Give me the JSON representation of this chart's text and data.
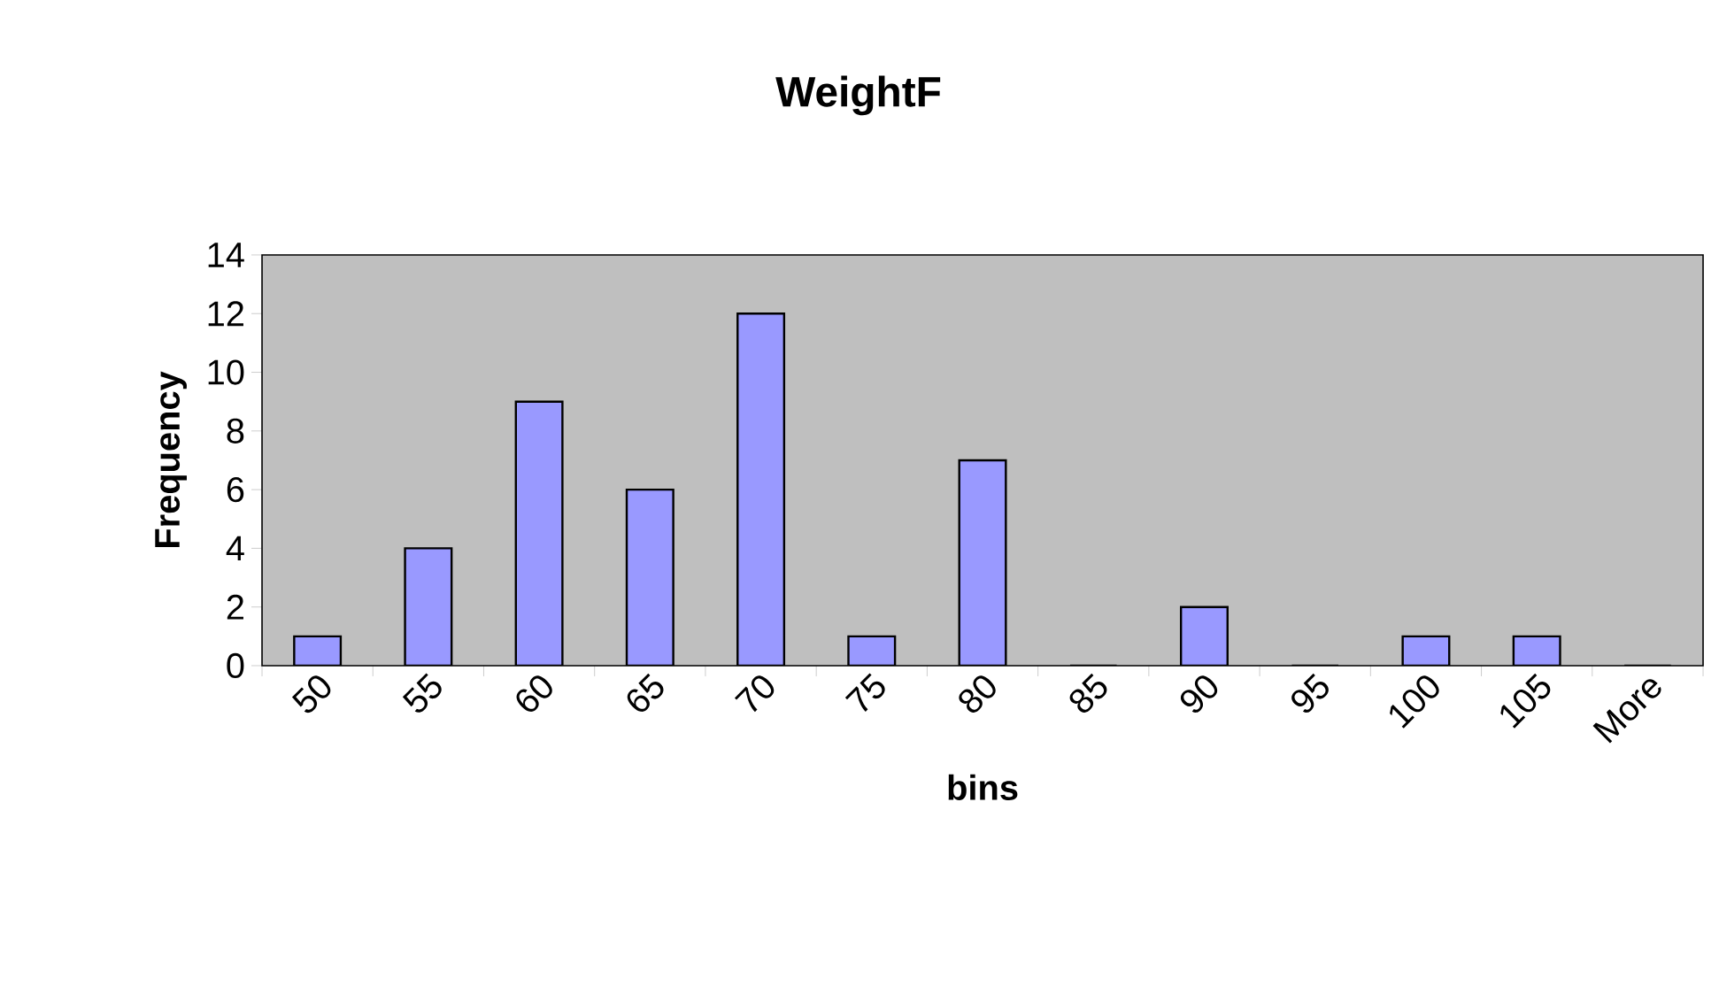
{
  "chart_data": {
    "type": "bar",
    "title": "WeightF",
    "xlabel": "bins",
    "ylabel": "Frequency",
    "categories": [
      "50",
      "55",
      "60",
      "65",
      "70",
      "75",
      "80",
      "85",
      "90",
      "95",
      "100",
      "105",
      "More"
    ],
    "values": [
      1,
      4,
      9,
      6,
      12,
      1,
      7,
      0,
      2,
      0,
      1,
      1,
      0
    ],
    "color": "#9999ff",
    "ylim": [
      0,
      14
    ],
    "yticks": [
      0,
      2,
      4,
      6,
      8,
      10,
      12,
      14
    ]
  }
}
